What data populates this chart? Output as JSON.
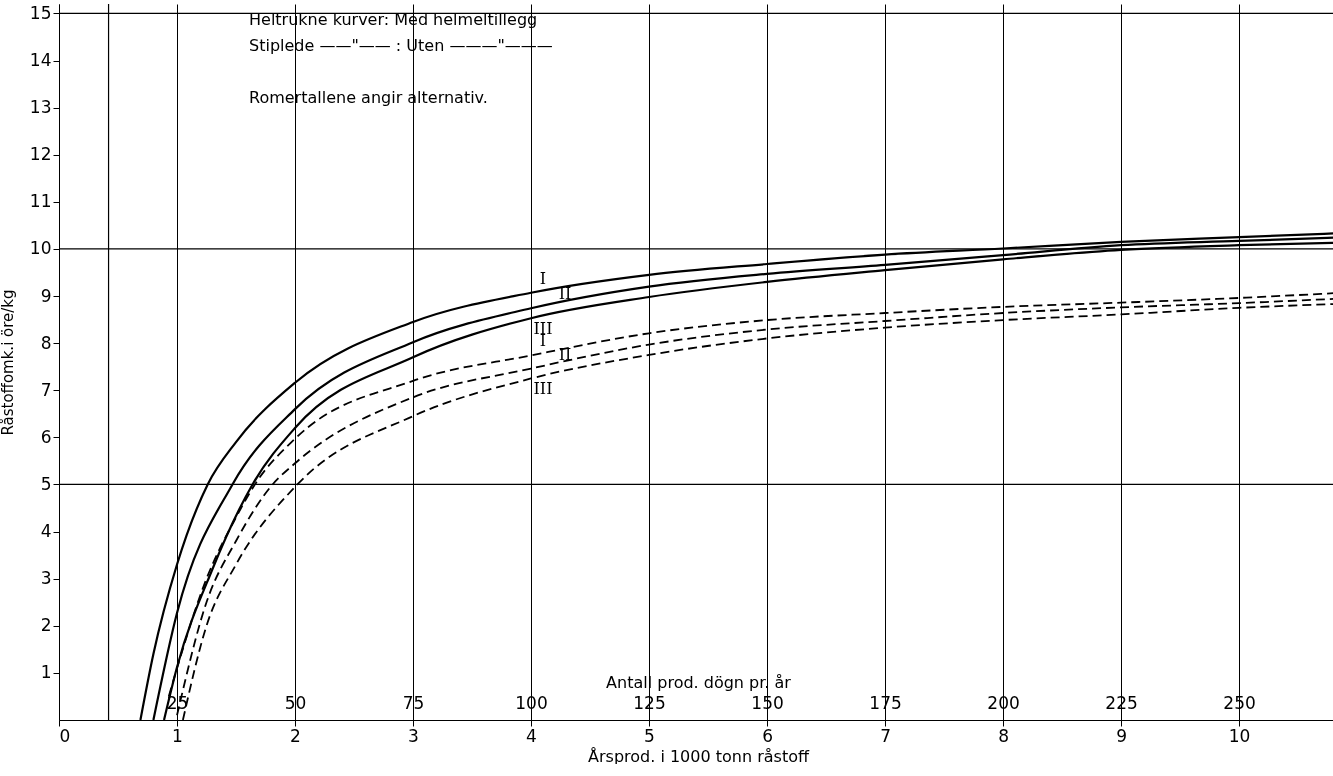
{
  "chart_data": {
    "type": "line",
    "xlabel": "Årsprod. i 1000 tonn råstoff",
    "ylabel": "Råstoffomk.i öre/kg",
    "x2label": "Antall prod. dögn pr. år",
    "xlim": [
      0,
      10.83
    ],
    "xticks": [
      0,
      1,
      2,
      3,
      4,
      5,
      6,
      7,
      8,
      9,
      10
    ],
    "ylim": [
      0,
      15.2
    ],
    "yticks": [
      1,
      2,
      3,
      4,
      5,
      6,
      7,
      8,
      9,
      10,
      11,
      12,
      13,
      14,
      15
    ],
    "x2lim": [
      0,
      270.75
    ],
    "x2ticks": [
      25,
      50,
      75,
      100,
      125,
      150,
      175,
      200,
      225,
      250
    ],
    "grid": "x",
    "ref_lines": [
      {
        "axis": "y",
        "value": 5
      },
      {
        "axis": "y",
        "value": 10
      },
      {
        "axis": "y",
        "value": 15
      },
      {
        "axis": "x",
        "value": 0.42
      }
    ],
    "series": [
      {
        "name": "I",
        "color": "#000000",
        "line_style": "solid",
        "x": [
          0.69,
          0.8,
          1,
          1.26,
          1.5,
          2,
          3,
          4,
          5,
          6,
          7,
          8,
          9,
          10,
          10.8
        ],
        "values": [
          0,
          1.4,
          3.3,
          5,
          5.9,
          7.16,
          8.45,
          9.07,
          9.45,
          9.68,
          9.88,
          10.01,
          10.15,
          10.25,
          10.33
        ]
      },
      {
        "name": "II",
        "color": "#000000",
        "line_style": "solid",
        "x": [
          0.8,
          1,
          1.47,
          2,
          3,
          4,
          5,
          6,
          7,
          8,
          9,
          10,
          10.8
        ],
        "values": [
          0,
          2.27,
          5,
          6.6,
          8.02,
          8.74,
          9.2,
          9.47,
          9.66,
          9.87,
          10.08,
          10.17,
          10.24
        ]
      },
      {
        "name": "III",
        "color": "#000000",
        "line_style": "solid",
        "x": [
          0.89,
          1,
          1.3,
          1.64,
          2,
          3,
          4,
          5,
          6,
          7,
          8,
          9,
          10,
          10.8
        ],
        "values": [
          0,
          1.12,
          3.2,
          5,
          6.2,
          7.7,
          8.53,
          8.98,
          9.3,
          9.55,
          9.78,
          9.98,
          10.08,
          10.13
        ]
      },
      {
        "name": "I",
        "color": "#000000",
        "line_style": "dashed",
        "x": [
          0.93,
          1.25,
          1.5,
          1.66,
          2,
          3,
          4,
          5,
          6,
          7,
          8,
          9,
          10,
          10.8
        ],
        "values": [
          0.5,
          3,
          4.3,
          5,
          5.97,
          7.2,
          7.74,
          8.21,
          8.49,
          8.64,
          8.77,
          8.86,
          8.96,
          9.06
        ]
      },
      {
        "name": "II",
        "color": "#000000",
        "line_style": "dashed",
        "x": [
          1,
          1.25,
          1.5,
          1.81,
          2,
          3,
          4,
          5,
          6,
          7,
          8,
          9,
          10,
          10.8
        ],
        "values": [
          0.1,
          2.5,
          3.8,
          5,
          5.45,
          6.85,
          7.46,
          7.97,
          8.29,
          8.47,
          8.64,
          8.76,
          8.85,
          8.94
        ]
      },
      {
        "name": "III",
        "color": "#000000",
        "line_style": "dashed",
        "x": [
          1.05,
          1.25,
          1.5,
          2.02,
          3,
          4,
          5,
          6,
          7,
          8,
          9,
          10,
          10.8
        ],
        "values": [
          0,
          2,
          3.3,
          5,
          6.45,
          7.25,
          7.75,
          8.1,
          8.33,
          8.49,
          8.61,
          8.75,
          8.83
        ]
      }
    ],
    "annotations": [
      "Heltrukne kurver: Med helmeltillegg",
      "Stiplede ——\"—— : Uten ———\"———",
      "Romertallene angir alternativ."
    ]
  }
}
